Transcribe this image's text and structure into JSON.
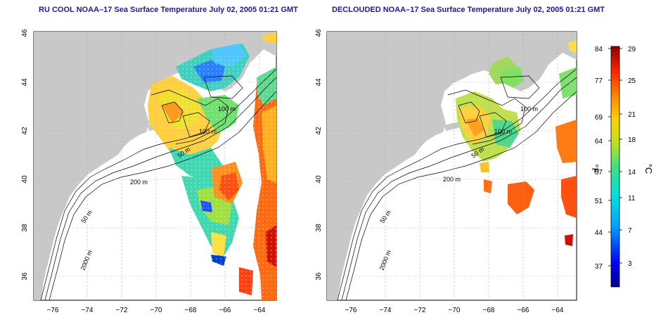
{
  "titles": {
    "left": "RU COOL NOAA–17 Sea Surface Temperature July 02, 2005 01:21 GMT",
    "right": "DECLOUDED NOAA–17 Sea Surface Temperature July 02, 2005 01:21 GMT"
  },
  "axes": {
    "lat_ticks": [
      "46",
      "44",
      "42",
      "40",
      "38",
      "36"
    ],
    "lon_ticks": [
      "−76",
      "−74",
      "−72",
      "−70",
      "−68",
      "−66",
      "−64"
    ]
  },
  "contours": {
    "labels": [
      "100 m",
      "100 m",
      "50 m",
      "200 m",
      "50 m",
      "2000 m"
    ]
  },
  "colorbar": {
    "f_label": "°F",
    "c_label": "°C",
    "f_ticks": [
      "84",
      "77",
      "69",
      "64",
      "57",
      "51",
      "44",
      "37"
    ],
    "c_ticks": [
      "29",
      "25",
      "21",
      "18",
      "14",
      "11",
      "7",
      "3"
    ]
  },
  "colors": {
    "land": "#c8c8c8",
    "title": "#1a1aa0",
    "ocean": "#ffffff"
  }
}
